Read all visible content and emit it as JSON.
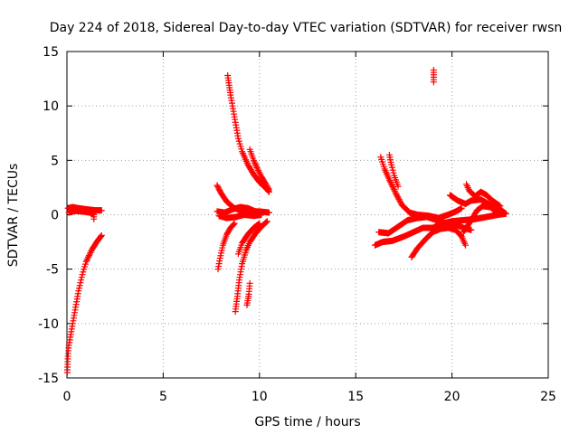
{
  "chart_data": {
    "type": "scatter",
    "title": "Day 224 of 2018, Sidereal Day-to-day VTEC variation (SDTVAR) for receiver rwsn",
    "xlabel": "GPS time / hours",
    "ylabel": "SDTVAR / TECUs",
    "xlim": [
      0,
      25
    ],
    "ylim": [
      -15,
      15
    ],
    "xticks": [
      0,
      5,
      10,
      15,
      20,
      25
    ],
    "yticks": [
      -15,
      -10,
      -5,
      0,
      5,
      10,
      15
    ],
    "grid": true,
    "marker": "+",
    "color": "#ff0000",
    "series": [
      {
        "name": "segments",
        "traces": [
          [
            [
              0.05,
              0.6
            ],
            [
              0.3,
              0.7
            ],
            [
              0.6,
              0.6
            ],
            [
              1.0,
              0.5
            ],
            [
              1.5,
              0.4
            ],
            [
              1.8,
              0.4
            ]
          ],
          [
            [
              0.1,
              0.2
            ],
            [
              0.4,
              0.35
            ],
            [
              0.8,
              0.3
            ],
            [
              1.2,
              0.2
            ],
            [
              1.4,
              0.0
            ],
            [
              1.4,
              -0.4
            ]
          ],
          [
            [
              0.02,
              -14.5
            ],
            [
              0.05,
              -13.0
            ],
            [
              0.1,
              -12.0
            ],
            [
              0.2,
              -11.0
            ],
            [
              0.3,
              -10.0
            ],
            [
              0.45,
              -8.5
            ],
            [
              0.6,
              -7.0
            ],
            [
              0.8,
              -5.5
            ],
            [
              1.0,
              -4.3
            ],
            [
              1.3,
              -3.2
            ],
            [
              1.55,
              -2.5
            ],
            [
              1.8,
              -1.9
            ]
          ],
          [
            [
              7.8,
              2.7
            ],
            [
              8.0,
              2.0
            ],
            [
              8.3,
              1.2
            ],
            [
              8.7,
              0.6
            ],
            [
              9.0,
              0.4
            ],
            [
              9.5,
              0.3
            ],
            [
              10.0,
              0.3
            ],
            [
              10.5,
              0.2
            ]
          ],
          [
            [
              7.8,
              0.3
            ],
            [
              8.2,
              0.2
            ],
            [
              8.6,
              0.5
            ],
            [
              9.0,
              0.7
            ],
            [
              9.4,
              0.6
            ],
            [
              9.8,
              0.3
            ],
            [
              10.2,
              0.2
            ]
          ],
          [
            [
              7.9,
              -0.1
            ],
            [
              8.3,
              -0.3
            ],
            [
              8.8,
              -0.2
            ],
            [
              9.2,
              0.0
            ],
            [
              9.7,
              -0.1
            ],
            [
              10.1,
              0.0
            ]
          ],
          [
            [
              7.85,
              -5.0
            ],
            [
              7.95,
              -4.0
            ],
            [
              8.1,
              -2.8
            ],
            [
              8.3,
              -1.8
            ],
            [
              8.5,
              -1.2
            ],
            [
              8.7,
              -0.8
            ]
          ],
          [
            [
              8.75,
              -8.9
            ],
            [
              8.85,
              -7.5
            ],
            [
              8.95,
              -6.0
            ],
            [
              9.1,
              -4.5
            ],
            [
              9.3,
              -3.3
            ],
            [
              9.5,
              -2.5
            ],
            [
              9.8,
              -1.7
            ],
            [
              10.1,
              -1.1
            ],
            [
              10.4,
              -0.6
            ]
          ],
          [
            [
              8.9,
              -3.6
            ],
            [
              9.1,
              -2.6
            ],
            [
              9.4,
              -1.8
            ],
            [
              9.7,
              -1.2
            ],
            [
              10.0,
              -0.8
            ]
          ],
          [
            [
              8.35,
              12.8
            ],
            [
              8.5,
              11.0
            ],
            [
              8.7,
              9.0
            ],
            [
              8.9,
              7.0
            ],
            [
              9.1,
              5.8
            ],
            [
              9.4,
              4.6
            ],
            [
              9.7,
              3.7
            ],
            [
              10.0,
              3.0
            ],
            [
              10.3,
              2.5
            ],
            [
              10.5,
              2.1
            ]
          ],
          [
            [
              9.5,
              6.0
            ],
            [
              9.7,
              5.0
            ],
            [
              9.9,
              4.2
            ],
            [
              10.1,
              3.5
            ],
            [
              10.3,
              2.9
            ],
            [
              10.5,
              2.3
            ]
          ],
          [
            [
              9.35,
              -8.3
            ],
            [
              9.45,
              -7.3
            ],
            [
              9.5,
              -6.3
            ]
          ],
          [
            [
              16.0,
              -2.8
            ],
            [
              16.4,
              -2.5
            ],
            [
              16.9,
              -2.4
            ],
            [
              17.5,
              -2.0
            ],
            [
              18.0,
              -1.6
            ],
            [
              18.5,
              -1.2
            ],
            [
              19.0,
              -1.2
            ],
            [
              19.5,
              -0.8
            ],
            [
              20.0,
              -0.6
            ],
            [
              20.6,
              -0.5
            ],
            [
              21.2,
              -0.4
            ],
            [
              21.8,
              -0.2
            ],
            [
              22.4,
              0.0
            ],
            [
              22.8,
              0.1
            ]
          ],
          [
            [
              16.2,
              -1.6
            ],
            [
              16.7,
              -1.7
            ],
            [
              17.2,
              -1.1
            ],
            [
              17.7,
              -0.5
            ],
            [
              18.2,
              -0.3
            ],
            [
              18.7,
              -0.2
            ],
            [
              19.2,
              -0.5
            ],
            [
              19.7,
              -0.8
            ],
            [
              20.2,
              -0.9
            ],
            [
              20.6,
              -1.2
            ],
            [
              21.0,
              -1.4
            ]
          ],
          [
            [
              16.3,
              5.3
            ],
            [
              16.5,
              4.2
            ],
            [
              16.8,
              3.0
            ],
            [
              17.1,
              1.9
            ],
            [
              17.4,
              0.9
            ],
            [
              17.8,
              0.2
            ],
            [
              18.2,
              0.0
            ],
            [
              18.8,
              -0.1
            ],
            [
              19.3,
              -0.3
            ],
            [
              19.8,
              0.0
            ],
            [
              20.2,
              0.3
            ],
            [
              20.5,
              0.6
            ]
          ],
          [
            [
              16.75,
              5.5
            ],
            [
              16.85,
              4.6
            ],
            [
              17.0,
              3.6
            ],
            [
              17.2,
              2.6
            ]
          ],
          [
            [
              17.9,
              -3.9
            ],
            [
              18.2,
              -3.1
            ],
            [
              18.6,
              -2.3
            ],
            [
              19.0,
              -1.6
            ],
            [
              19.4,
              -1.3
            ],
            [
              19.8,
              -1.2
            ],
            [
              20.2,
              -1.4
            ],
            [
              20.5,
              -2.0
            ],
            [
              20.7,
              -2.8
            ]
          ],
          [
            [
              19.05,
              13.3
            ],
            [
              19.05,
              12.2
            ]
          ],
          [
            [
              19.9,
              1.8
            ],
            [
              20.3,
              1.3
            ],
            [
              20.7,
              1.0
            ],
            [
              21.0,
              1.3
            ],
            [
              21.5,
              1.4
            ],
            [
              22.0,
              0.9
            ],
            [
              22.5,
              0.5
            ],
            [
              22.8,
              0.1
            ]
          ],
          [
            [
              20.75,
              2.8
            ],
            [
              20.9,
              2.2
            ],
            [
              21.2,
              1.7
            ],
            [
              21.5,
              2.1
            ],
            [
              21.8,
              1.8
            ],
            [
              22.1,
              1.3
            ],
            [
              22.5,
              0.8
            ]
          ],
          [
            [
              20.6,
              -1.6
            ],
            [
              21.0,
              -0.5
            ],
            [
              21.3,
              0.4
            ],
            [
              21.6,
              0.8
            ],
            [
              22.0,
              0.7
            ],
            [
              22.4,
              0.1
            ]
          ]
        ]
      }
    ]
  }
}
